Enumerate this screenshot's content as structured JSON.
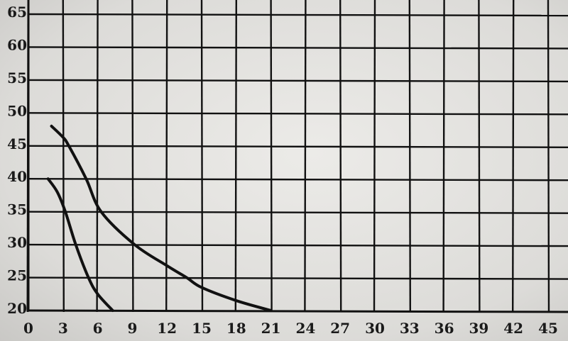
{
  "chart_data": {
    "type": "line",
    "title": "",
    "xlabel": "",
    "ylabel": "",
    "xlim": [
      0,
      45
    ],
    "ylim": [
      20,
      65
    ],
    "grid": true,
    "x_ticks": [
      0,
      3,
      6,
      9,
      12,
      15,
      18,
      21,
      24,
      27,
      30,
      33,
      36,
      39,
      42,
      45
    ],
    "y_ticks": [
      20,
      25,
      30,
      35,
      40,
      45,
      50,
      55,
      60,
      65
    ],
    "series": [
      {
        "x": [
          2,
          3,
          3.5,
          5,
          6.3,
          9.2,
          12,
          13.7,
          15,
          18,
          21
        ],
        "y": [
          48,
          46.3,
          45,
          40,
          35,
          30,
          26.8,
          25,
          23.5,
          21.5,
          20
        ]
      },
      {
        "x": [
          1.7,
          2.5,
          3.2,
          4.1,
          5.2,
          6,
          7.3
        ],
        "y": [
          40,
          38,
          35,
          30,
          25,
          22.5,
          20
        ]
      }
    ],
    "line_color": "#111111"
  }
}
